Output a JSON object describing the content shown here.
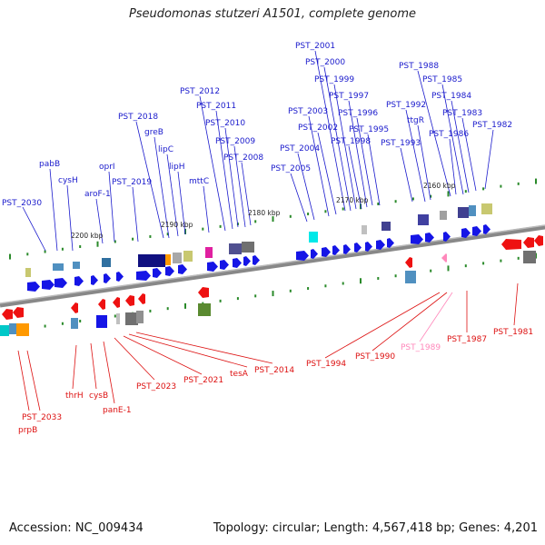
{
  "title": "Pseudomonas stutzeri A1501, complete genome",
  "footer": {
    "accession": "Accession: NC_009434",
    "topology": "Topology: circular; Length: 4,567,418 bp; Genes: 4,201"
  },
  "ruler": [
    "2200 kbp",
    "2190 kbp",
    "2180 kbp",
    "2170 kbp",
    "2160 kbp"
  ],
  "colors": {
    "forward_label": "#1a1acc",
    "reverse_label": "#dd1111",
    "pseudo_label": "#ff88bb",
    "backbone": "#888888"
  },
  "top_labels": [
    "PST_2030",
    "pabB",
    "cysH",
    "aroF-1",
    "oprI",
    "PST_2019",
    "PST_2018",
    "greB",
    "lipC",
    "lipH",
    "mttC",
    "PST_2012",
    "PST_2011",
    "PST_2010",
    "PST_2009",
    "PST_2008",
    "PST_2005",
    "PST_2004",
    "PST_2003",
    "PST_2002",
    "PST_2001",
    "PST_2000",
    "PST_1999",
    "PST_1998",
    "PST_1997",
    "PST_1996",
    "PST_1995",
    "PST_1993",
    "PST_1992",
    "ttgR",
    "PST_1988",
    "PST_1986",
    "PST_1985",
    "PST_1984",
    "PST_1983",
    "PST_1982"
  ],
  "bottom_labels": [
    "PST_2033",
    "prpB",
    "thrH",
    "cysB",
    "panE-1",
    "PST_2023",
    "PST_2021",
    "tesA",
    "PST_2014",
    "PST_1994",
    "PST_1990",
    "PST_1989",
    "PST_1987",
    "PST_1981"
  ]
}
